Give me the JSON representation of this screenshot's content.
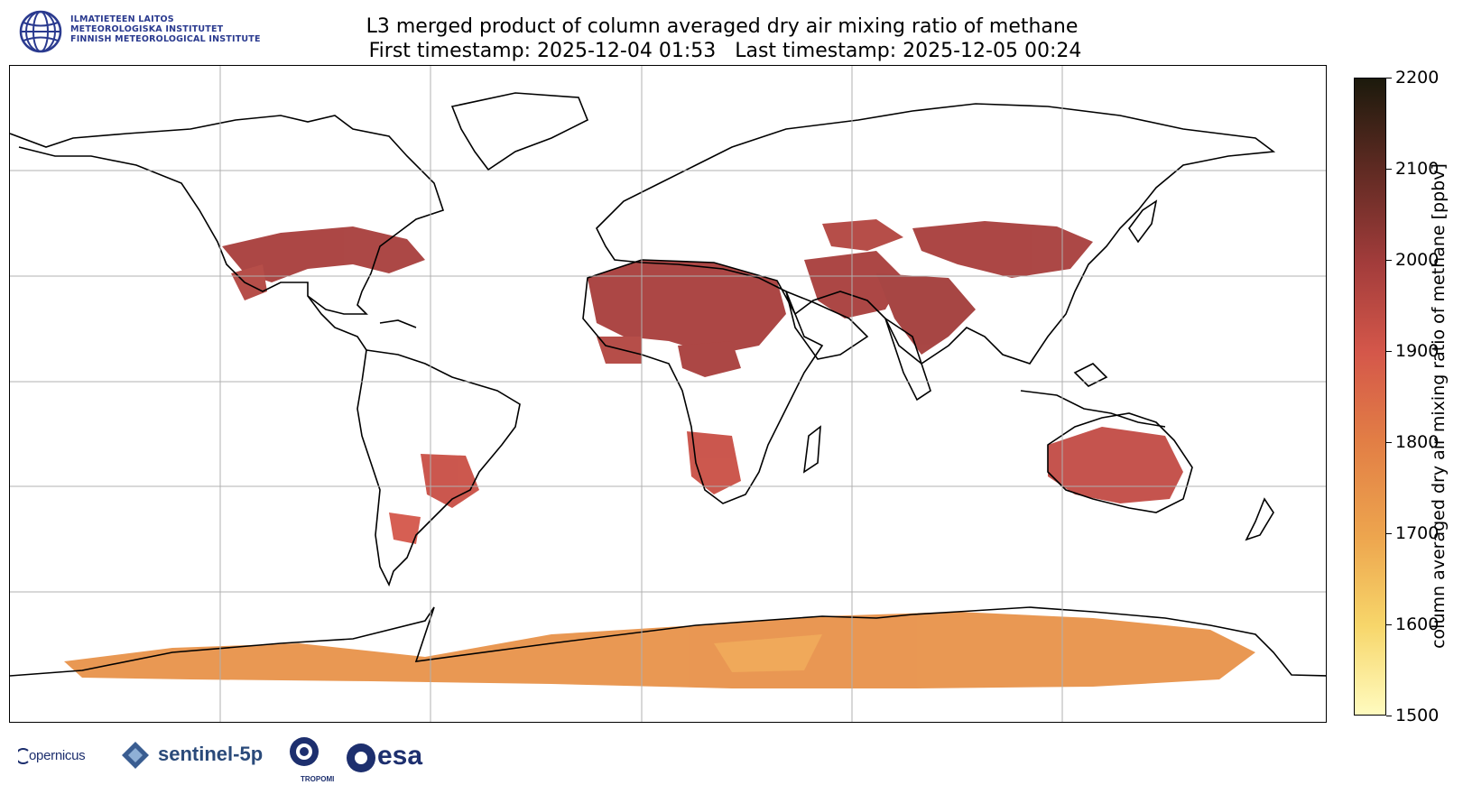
{
  "header": {
    "title_line1": "L3 merged product of column averaged dry air mixing ratio of methane",
    "title_line2": " First timestamp: 2025-12-04 01:53   Last timestamp: 2025-12-05 00:24"
  },
  "institute": {
    "line1": "ILMATIETEEN LAITOS",
    "line2": "METEOROLOGISKA INSTITUTET",
    "line3": "FINNISH METEOROLOGICAL INSTITUTE",
    "logo_icon": "fmi-globe-icon",
    "color": "#2a3a8f"
  },
  "colorbar": {
    "label": "column averaged dry air mixing ratio of methane [ppbv]",
    "min": 1500,
    "max": 2200,
    "ticks": [
      "1500",
      "1600",
      "1700",
      "1800",
      "1900",
      "2000",
      "2100",
      "2200"
    ],
    "tick_values": [
      1500,
      1600,
      1700,
      1800,
      1900,
      2000,
      2100,
      2200
    ],
    "colors": [
      "#fffbbf",
      "#f7d66a",
      "#eda54e",
      "#e27e45",
      "#d4574a",
      "#a23c3b",
      "#5e2a22",
      "#1c1a0c"
    ]
  },
  "map": {
    "projection": "equirectangular",
    "gridlines": true,
    "lon_grid": [
      -120,
      -60,
      0,
      60,
      120
    ],
    "lat_grid": [
      60,
      30,
      0,
      -30,
      -60
    ]
  },
  "footer_logos": {
    "copernicus": "opernicus",
    "sentinel": "sentinel-5p",
    "tropomi": "TROPOMI",
    "esa": "esa"
  }
}
